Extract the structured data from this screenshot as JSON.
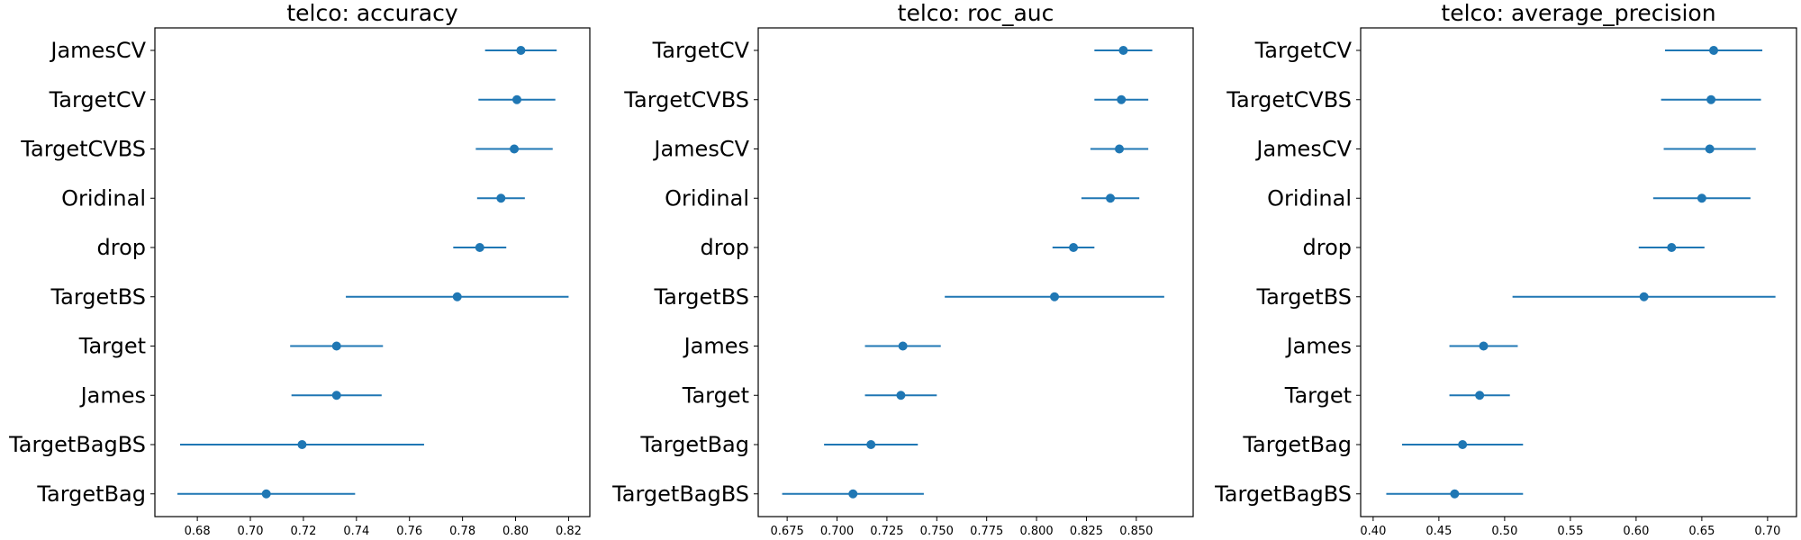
{
  "chart_data": [
    {
      "type": "scatter",
      "title": "telco: accuracy",
      "categories": [
        "JamesCV",
        "TargetCV",
        "TargetCVBS",
        "Oridinal",
        "drop",
        "TargetBS",
        "Target",
        "James",
        "TargetBagBS",
        "TargetBag"
      ],
      "values": [
        0.802,
        0.8005,
        0.7995,
        0.7945,
        0.7865,
        0.778,
        0.7325,
        0.7325,
        0.7195,
        0.706
      ],
      "errors": [
        0.0135,
        0.0145,
        0.0145,
        0.009,
        0.01,
        0.042,
        0.0175,
        0.017,
        0.046,
        0.0335
      ],
      "xlim": [
        0.664,
        0.828
      ],
      "xticks": [
        0.68,
        0.7,
        0.72,
        0.74,
        0.76,
        0.78,
        0.8,
        0.82
      ],
      "xtick_labels": [
        "0.68",
        "0.70",
        "0.72",
        "0.74",
        "0.76",
        "0.78",
        "0.80",
        "0.82"
      ],
      "color": "#1f77b4"
    },
    {
      "type": "scatter",
      "title": "telco: roc_auc",
      "categories": [
        "TargetCV",
        "TargetCVBS",
        "JamesCV",
        "Oridinal",
        "drop",
        "TargetBS",
        "James",
        "Target",
        "TargetBag",
        "TargetBagBS"
      ],
      "values": [
        0.8435,
        0.8425,
        0.8415,
        0.837,
        0.8185,
        0.809,
        0.733,
        0.732,
        0.717,
        0.708
      ],
      "errors": [
        0.0145,
        0.0135,
        0.0145,
        0.0145,
        0.0105,
        0.055,
        0.019,
        0.018,
        0.0235,
        0.0355
      ],
      "xlim": [
        0.6605,
        0.8785
      ],
      "xticks": [
        0.675,
        0.7,
        0.725,
        0.75,
        0.775,
        0.8,
        0.825,
        0.85
      ],
      "xtick_labels": [
        "0.675",
        "0.700",
        "0.725",
        "0.750",
        "0.775",
        "0.800",
        "0.825",
        "0.850"
      ],
      "color": "#1f77b4"
    },
    {
      "type": "scatter",
      "title": "telco: average_precision",
      "categories": [
        "TargetCV",
        "TargetCVBS",
        "JamesCV",
        "Oridinal",
        "drop",
        "TargetBS",
        "James",
        "Target",
        "TargetBag",
        "TargetBagBS"
      ],
      "values": [
        0.659,
        0.657,
        0.656,
        0.65,
        0.627,
        0.606,
        0.484,
        0.481,
        0.468,
        0.462
      ],
      "errors": [
        0.037,
        0.038,
        0.035,
        0.037,
        0.025,
        0.1,
        0.026,
        0.023,
        0.046,
        0.052
      ],
      "xlim": [
        0.3905,
        0.722
      ],
      "xticks": [
        0.4,
        0.45,
        0.5,
        0.55,
        0.6,
        0.65,
        0.7
      ],
      "xtick_labels": [
        "0.40",
        "0.45",
        "0.50",
        "0.55",
        "0.60",
        "0.65",
        "0.70"
      ],
      "color": "#1f77b4"
    }
  ]
}
